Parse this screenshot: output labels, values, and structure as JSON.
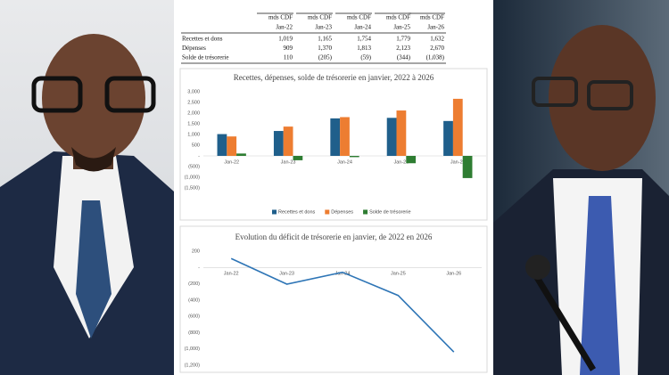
{
  "table": {
    "columns": [
      {
        "unit": "mds CDF",
        "period": "Jan-22"
      },
      {
        "unit": "mds CDF",
        "period": "Jan-23"
      },
      {
        "unit": "mds CDF",
        "period": "Jan-24"
      },
      {
        "unit": "mds CDF",
        "period": "Jan-25"
      },
      {
        "unit": "mds CDF",
        "period": "Jan-26"
      }
    ],
    "rows": [
      {
        "label": "Recettes et dons",
        "cells": [
          "1,019",
          "1,165",
          "1,754",
          "1,779",
          "1,632"
        ]
      },
      {
        "label": "Dépenses",
        "cells": [
          "909",
          "1,370",
          "1,813",
          "2,123",
          "2,670"
        ]
      },
      {
        "label": "Solde de trésorerie",
        "cells": [
          "110",
          "(205)",
          "(59)",
          "(344)",
          "(1,038)"
        ]
      }
    ]
  },
  "chart_data": [
    {
      "type": "bar",
      "title": "Recettes, dépenses, solde de trésorerie en janvier, 2022 à 2026",
      "categories": [
        "Jan-22",
        "Jan-23",
        "Jan-24",
        "Jan-25",
        "Jan-26"
      ],
      "series": [
        {
          "name": "Recettes et dons",
          "color": "#1f5f8b",
          "values": [
            1019,
            1165,
            1754,
            1779,
            1632
          ]
        },
        {
          "name": "Dépenses",
          "color": "#ed7d31",
          "values": [
            909,
            1370,
            1813,
            2123,
            2670
          ]
        },
        {
          "name": "Solde de trésorerie",
          "color": "#2e7d32",
          "values": [
            110,
            -205,
            -59,
            -344,
            -1038
          ]
        }
      ],
      "ylim": [
        -1500,
        3000
      ],
      "yticks": [
        {
          "value": 3000,
          "label": "3,000"
        },
        {
          "value": 2500,
          "label": "2,500"
        },
        {
          "value": 2000,
          "label": "2,000"
        },
        {
          "value": 1500,
          "label": "1,500"
        },
        {
          "value": 1000,
          "label": "1,000"
        },
        500,
        {
          "value": 0,
          "label": "-"
        },
        {
          "value": -500,
          "label": "(500)"
        },
        {
          "value": -1000,
          "label": "(1,000)"
        },
        {
          "value": -1500,
          "label": "(1,500)"
        }
      ],
      "grid": false,
      "legend": "bottom"
    },
    {
      "type": "line",
      "title": "Evolution du déficit de trésorerie en janvier, de 2022 en 2026",
      "categories": [
        "Jan-22",
        "Jan-23",
        "Jan-24",
        "Jan-25",
        "Jan-26"
      ],
      "values": [
        110,
        -205,
        -59,
        -344,
        -1038
      ],
      "color": "#2e75b6",
      "ylim": [
        -1200,
        200
      ],
      "yticks": [
        200,
        {
          "value": 0,
          "label": "-"
        },
        {
          "value": -200,
          "label": "(200)"
        },
        {
          "value": -400,
          "label": "(400)"
        },
        {
          "value": -600,
          "label": "(600)"
        },
        {
          "value": -800,
          "label": "(800)"
        },
        {
          "value": -1000,
          "label": "(1,000)"
        },
        {
          "value": -1200,
          "label": "(1,200)"
        }
      ],
      "grid": false
    }
  ]
}
